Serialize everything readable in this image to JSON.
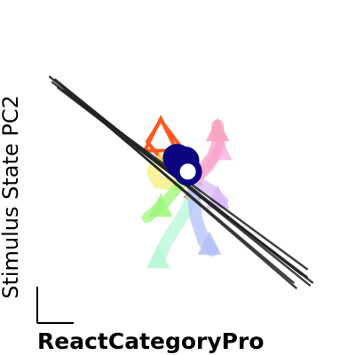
{
  "chart_data": {
    "type": "line",
    "xlabel": "ReactCategoryPro",
    "ylabel": "Stimulus State PC2",
    "grid": false,
    "legend": "none",
    "axes_visible": false,
    "scale_bar": true,
    "xlim": [
      0,
      100
    ],
    "ylim": [
      0,
      100
    ],
    "black_lines": [
      {
        "x": [
          2,
          99
        ],
        "y": [
          88,
          12
        ]
      },
      {
        "x": [
          3,
          95
        ],
        "y": [
          86,
          15
        ]
      },
      {
        "x": [
          5,
          97
        ],
        "y": [
          84,
          14
        ]
      },
      {
        "x": [
          7,
          97
        ],
        "y": [
          83,
          17
        ]
      },
      {
        "x": [
          9,
          92
        ],
        "y": [
          82,
          12
        ]
      },
      {
        "x": [
          4,
          98
        ],
        "y": [
          87,
          11
        ]
      },
      {
        "x": [
          6,
          93
        ],
        "y": [
          85,
          10
        ]
      }
    ],
    "trajectories": [
      {
        "color": "#ff5722",
        "width": 4,
        "x": [
          43,
          52,
          47,
          38,
          43
        ],
        "y": [
          72,
          60,
          53,
          64,
          72
        ],
        "marker": "triangle-open",
        "marker_at": [
          43,
          66
        ]
      },
      {
        "color": "#f4511e",
        "width": 2,
        "x": [
          47,
          54,
          57
        ],
        "y": [
          55,
          50,
          48
        ],
        "marker": "x",
        "marker_at": [
          55,
          46
        ]
      },
      {
        "color": "#f6ee7a",
        "width": 14,
        "x": [
          44,
          40,
          42,
          50
        ],
        "y": [
          58,
          53,
          49,
          48
        ],
        "marker": "none",
        "marker_at": [
          0,
          0
        ]
      },
      {
        "color": "#9cf87a",
        "width": 12,
        "x": [
          50,
          45,
          38
        ],
        "y": [
          48,
          42,
          36
        ],
        "marker": "triangle",
        "marker_at": [
          43,
          40
        ]
      },
      {
        "color": "#b7f7d7",
        "width": 14,
        "x": [
          56,
          52,
          45,
          42
        ],
        "y": [
          47,
          38,
          27,
          20
        ],
        "marker": "triangle",
        "marker_at": [
          42,
          21
        ]
      },
      {
        "color": "#b3c1f9",
        "width": 14,
        "x": [
          55,
          56,
          59,
          62
        ],
        "y": [
          46,
          36,
          27,
          24
        ],
        "marker": "triangle",
        "marker_at": [
          61,
          26
        ]
      },
      {
        "color": "#d9b8f7",
        "width": 12,
        "x": [
          57,
          62,
          66
        ],
        "y": [
          49,
          46,
          42
        ],
        "marker": "triangle",
        "marker_at": [
          64,
          43
        ]
      },
      {
        "color": "#f7b6e8",
        "width": 12,
        "x": [
          57,
          61,
          65,
          65
        ],
        "y": [
          51,
          55,
          62,
          66
        ],
        "marker": "triangle",
        "marker_at": [
          65,
          61
        ]
      },
      {
        "color": "#f7a3c2",
        "width": 14,
        "x": [
          57,
          62,
          64,
          64
        ],
        "y": [
          52,
          58,
          63,
          70
        ],
        "marker": "triangle",
        "marker_at": [
          64,
          68
        ]
      }
    ],
    "center_markers": [
      {
        "x": 49,
        "y": 58,
        "fill": "#0d0580"
      },
      {
        "x": 52,
        "y": 57,
        "fill": "#0d0580"
      },
      {
        "x": 50,
        "y": 56,
        "fill": "#0d0580"
      },
      {
        "x": 53,
        "y": 53,
        "fill": "#0d0580"
      },
      {
        "x": 53,
        "y": 53,
        "fill": "#ffffff"
      }
    ]
  }
}
